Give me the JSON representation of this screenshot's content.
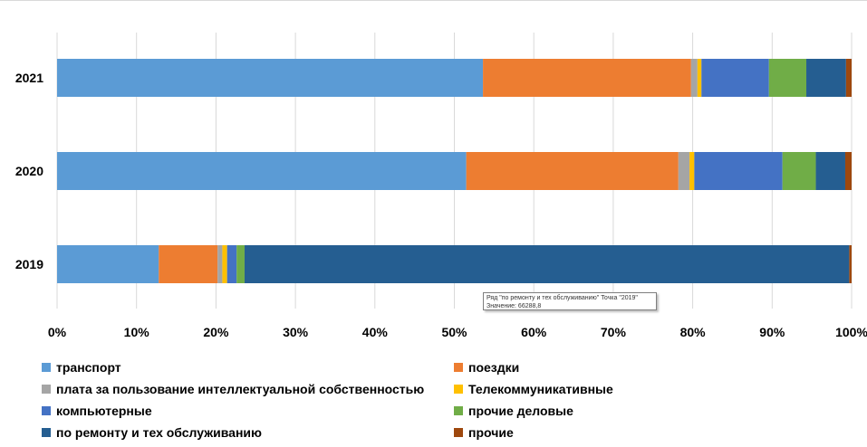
{
  "chart_data": {
    "type": "bar",
    "orientation": "horizontal",
    "stacked": "percent",
    "categories": [
      "2021",
      "2020",
      "2019"
    ],
    "xlim": [
      0,
      100
    ],
    "x_ticks": [
      "0%",
      "10%",
      "20%",
      "30%",
      "40%",
      "50%",
      "60%",
      "70%",
      "80%",
      "90%",
      "100%"
    ],
    "grid": true,
    "legend_position": "bottom",
    "series": [
      {
        "name": "транспорт",
        "color": "#5B9BD5",
        "values": [
          53.6,
          51.5,
          12.8
        ]
      },
      {
        "name": "поездки",
        "color": "#ED7D31",
        "values": [
          26.2,
          26.7,
          7.4
        ]
      },
      {
        "name": "плата за пользование интеллектуальной собственностью",
        "color": "#A5A5A5",
        "values": [
          0.8,
          1.4,
          0.6
        ]
      },
      {
        "name": "Телекоммуникативные",
        "color": "#FFC000",
        "values": [
          0.5,
          0.6,
          0.6
        ]
      },
      {
        "name": "компьютерные",
        "color": "#4472C4",
        "values": [
          8.5,
          11.1,
          1.2
        ]
      },
      {
        "name": "прочие деловые",
        "color": "#70AD47",
        "values": [
          4.7,
          4.2,
          1.0
        ]
      },
      {
        "name": "по ремонту и тех обслуживанию",
        "color": "#255E91",
        "values": [
          5.0,
          3.7,
          76.1
        ]
      },
      {
        "name": "прочие",
        "color": "#9E480E",
        "values": [
          0.7,
          0.8,
          0.3
        ]
      }
    ],
    "tooltip": {
      "line1": "Ряд \"по ремонту и тех обслуживанию\" Точка \"2019\"",
      "line2": "Значение: 66288,8"
    }
  }
}
